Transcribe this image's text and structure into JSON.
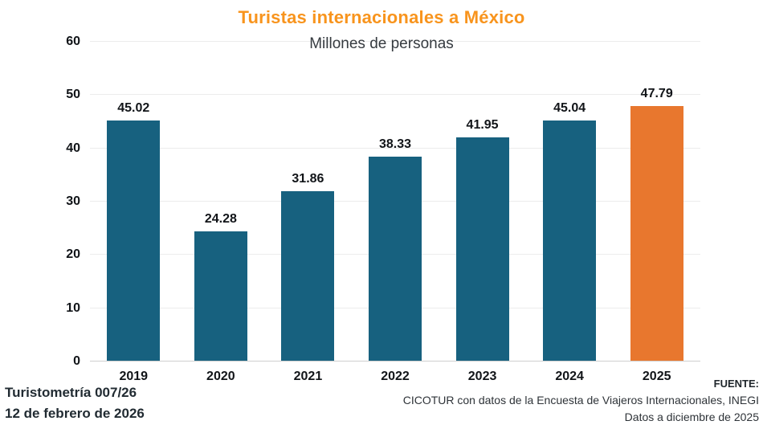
{
  "title": "Turistas internacionales a México",
  "subtitle": "Millones de personas",
  "chart_data": {
    "type": "bar",
    "categories": [
      "2019",
      "2020",
      "2021",
      "2022",
      "2023",
      "2024",
      "2025"
    ],
    "values": [
      45.02,
      24.28,
      31.86,
      38.33,
      41.95,
      45.04,
      47.79
    ],
    "value_labels": [
      "45.02",
      "24.28",
      "31.86",
      "38.33",
      "41.95",
      "45.04",
      "47.79"
    ],
    "title": "Turistas internacionales a México",
    "subtitle": "Millones de personas",
    "xlabel": "",
    "ylabel": "",
    "ylim": [
      0,
      60
    ],
    "yticks": [
      0,
      10,
      20,
      30,
      40,
      50,
      60
    ],
    "grid": true,
    "legend": "none",
    "bar_color": "#17617F",
    "highlight_index": 6,
    "highlight_color": "#E8772E"
  },
  "colors": {
    "title_orange": "#F8941D",
    "bar_teal": "#17617F",
    "bar_orange": "#E8772E",
    "gridline": "#ECECEC",
    "label_text": "#111418"
  },
  "footer": {
    "left_line1": "Turistometría 007/26",
    "left_line2": "12 de febrero de 2026",
    "source_label": "FUENTE:",
    "source_line1": "CICOTUR con datos de la Encuesta de Viajeros Internacionales, INEGI",
    "source_line2": "Datos a diciembre de 2025"
  }
}
